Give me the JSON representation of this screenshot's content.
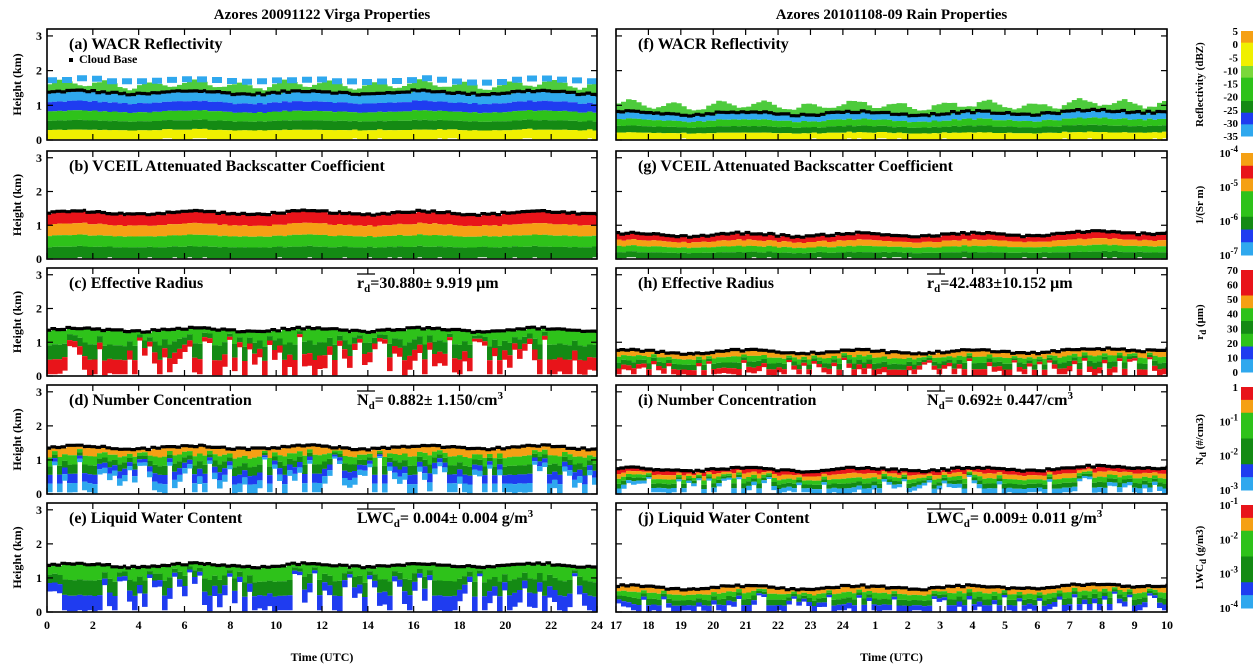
{
  "chart_data": {
    "type": "heatmap",
    "colors": {
      "lightblue": "#2fa8ee",
      "blue": "#1f3cf0",
      "darkgreen": "#148a14",
      "green": "#2ec21a",
      "lightgreen": "#7ad83a",
      "yellow": "#f0f000",
      "orange": "#f5a014",
      "red": "#e8141a",
      "black": "#000000"
    },
    "columns": [
      {
        "title": "Azores 20091122 Virga Properties",
        "xlabel": "Time (UTC)",
        "x_ticks": [
          "0",
          "2",
          "4",
          "6",
          "8",
          "10",
          "12",
          "14",
          "16",
          "18",
          "20",
          "22",
          "24"
        ],
        "xlim": [
          0,
          24
        ],
        "panels": [
          {
            "label": "(a) WACR Reflectivity",
            "stat": "",
            "legend": "Cloud Base",
            "cloud_base_km": 1.35,
            "fill": [
              "lightblue",
              "blue",
              "green",
              "darkgreen",
              "yellow"
            ]
          },
          {
            "label": "(b) VCEIL Attenuated Backscatter Coefficient",
            "stat": "",
            "legend": "",
            "cloud_base_km": 1.35,
            "fill": [
              "red",
              "orange",
              "green",
              "darkgreen"
            ]
          },
          {
            "label": "(c) Effective Radius",
            "stat": "r_d=30.880± 9.919 μm",
            "stat_parts": {
              "sym": "r",
              "sub": "d",
              "text": "=30.880± 9.919 μm",
              "sup": ""
            },
            "legend": "",
            "cloud_base_km": 1.35,
            "fill": [
              "green",
              "darkgreen",
              "red"
            ]
          },
          {
            "label": "(d) Number Concentration",
            "stat": "N_d= 0.882± 1.150/cm3",
            "stat_parts": {
              "sym": "N",
              "sub": "d",
              "text": "= 0.882± 1.150/cm",
              "sup": "3"
            },
            "legend": "",
            "cloud_base_km": 1.35,
            "fill": [
              "orange",
              "green",
              "darkgreen",
              "blue",
              "lightblue"
            ]
          },
          {
            "label": "(e) Liquid Water Content",
            "stat": "LWC_d= 0.004± 0.004 g/m3",
            "stat_parts": {
              "sym": "LWC",
              "sub": "d",
              "text": "= 0.004± 0.004 g/m",
              "sup": "3"
            },
            "legend": "",
            "cloud_base_km": 1.35,
            "fill": [
              "green",
              "darkgreen",
              "blue"
            ]
          }
        ]
      },
      {
        "title": "Azores 20101108-09 Rain Properties",
        "xlabel": "Time (UTC)",
        "x_ticks": [
          "17",
          "18",
          "19",
          "20",
          "21",
          "22",
          "23",
          "24",
          "1",
          "2",
          "3",
          "4",
          "5",
          "6",
          "7",
          "8",
          "9",
          "10"
        ],
        "xlim": [
          17,
          34
        ],
        "panels": [
          {
            "label": "(f) WACR Reflectivity",
            "stat": "",
            "legend": "",
            "cloud_base_km": 0.75,
            "fill": [
              "lightblue",
              "green",
              "darkgreen",
              "yellow"
            ]
          },
          {
            "label": "(g) VCEIL Attenuated Backscatter Coefficient",
            "stat": "",
            "legend": "",
            "cloud_base_km": 0.7,
            "fill": [
              "red",
              "orange",
              "green",
              "darkgreen"
            ]
          },
          {
            "label": "(h) Effective Radius",
            "stat": "r_d=42.483±10.152 μm",
            "stat_parts": {
              "sym": "r",
              "sub": "d",
              "text": "=42.483±10.152 μm",
              "sup": ""
            },
            "legend": "",
            "cloud_base_km": 0.7,
            "fill": [
              "orange",
              "green",
              "darkgreen",
              "red"
            ]
          },
          {
            "label": "(i) Number Concentration",
            "stat": "N_d= 0.692± 0.447/cm3",
            "stat_parts": {
              "sym": "N",
              "sub": "d",
              "text": "= 0.692± 0.447/cm",
              "sup": "3"
            },
            "legend": "",
            "cloud_base_km": 0.7,
            "fill": [
              "red",
              "orange",
              "green",
              "darkgreen",
              "lightblue"
            ]
          },
          {
            "label": "(j) Liquid Water Content",
            "stat": "LWC_d= 0.009± 0.011 g/m3",
            "stat_parts": {
              "sym": "LWC",
              "sub": "d",
              "text": "= 0.009± 0.011 g/m",
              "sup": "3"
            },
            "legend": "",
            "cloud_base_km": 0.7,
            "fill": [
              "orange",
              "green",
              "darkgreen",
              "blue"
            ]
          }
        ]
      }
    ],
    "ylabel": "Height (km)",
    "y_ticks": [
      "0",
      "1",
      "2",
      "3"
    ],
    "ylim": [
      0,
      3.2
    ],
    "colorbars": [
      {
        "label": "Reflectivity (dBZ)",
        "ticks": [
          "5",
          "0",
          "-5",
          "-10",
          "-15",
          "-20",
          "-25",
          "-30",
          "-35"
        ],
        "colors": [
          "orange",
          "yellow",
          "yellow",
          "lightgreen",
          "green",
          "green",
          "darkgreen",
          "blue",
          "lightblue"
        ]
      },
      {
        "label": "1/(Sr m)",
        "ticks": [
          "10-4",
          "10-5",
          "10-6",
          "10-7"
        ],
        "ticks_parts": [
          {
            "b": "10",
            "e": "-4"
          },
          {
            "b": "10",
            "e": "-5"
          },
          {
            "b": "10",
            "e": "-6"
          },
          {
            "b": "10",
            "e": "-7"
          }
        ],
        "colors": [
          "orange",
          "red",
          "orange",
          "green",
          "green",
          "darkgreen",
          "blue",
          "lightblue"
        ]
      },
      {
        "label": "r_d (μm)",
        "label_parts": {
          "sym": "r",
          "sub": "d",
          "rest": " (μm)"
        },
        "ticks": [
          "70",
          "60",
          "50",
          "40",
          "30",
          "20",
          "10",
          "0"
        ],
        "colors": [
          "red",
          "red",
          "orange",
          "green",
          "darkgreen",
          "green",
          "blue",
          "lightblue"
        ]
      },
      {
        "label": "N_d (#/cm3)",
        "label_parts": {
          "sym": "N",
          "sub": "d",
          "rest": " (#/cm3)"
        },
        "ticks": [
          "1",
          "10-1",
          "10-2",
          "10-3"
        ],
        "ticks_parts": [
          {
            "b": "1",
            "e": ""
          },
          {
            "b": "10",
            "e": "-1"
          },
          {
            "b": "10",
            "e": "-2"
          },
          {
            "b": "10",
            "e": "-3"
          }
        ],
        "colors": [
          "red",
          "orange",
          "green",
          "green",
          "darkgreen",
          "darkgreen",
          "blue",
          "lightblue"
        ]
      },
      {
        "label": "LWC_d (g/m3)",
        "label_parts": {
          "sym": "LWC",
          "sub": "d",
          "rest": " (g/m3)"
        },
        "ticks": [
          "10-1",
          "10-2",
          "10-3",
          "10-4"
        ],
        "ticks_parts": [
          {
            "b": "10",
            "e": "-1"
          },
          {
            "b": "10",
            "e": "-2"
          },
          {
            "b": "10",
            "e": "-3"
          },
          {
            "b": "10",
            "e": "-4"
          }
        ],
        "colors": [
          "red",
          "orange",
          "green",
          "green",
          "darkgreen",
          "darkgreen",
          "blue",
          "lightblue"
        ]
      }
    ]
  }
}
